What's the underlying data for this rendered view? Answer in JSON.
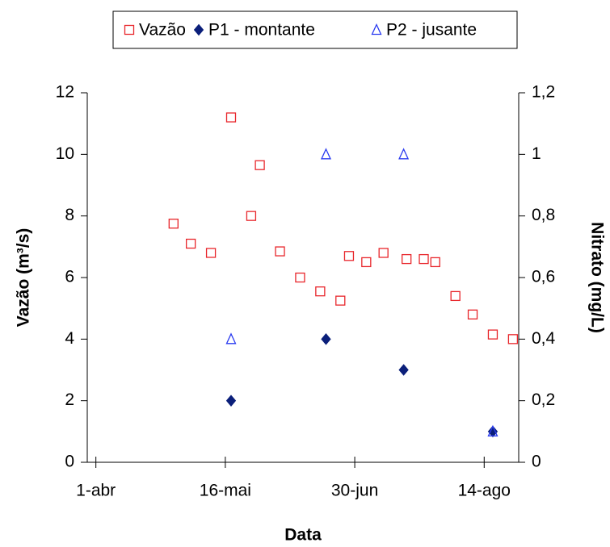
{
  "chart_data": {
    "type": "scatter",
    "x_label": "Data",
    "y_label": "Vazão (m³/s)",
    "y2_label": "Nitrato (mg/L)",
    "xlim": [
      88,
      238
    ],
    "xticks": [
      {
        "value": 91,
        "label": "1-abr"
      },
      {
        "value": 136,
        "label": "16-mai"
      },
      {
        "value": 181,
        "label": "30-jun"
      },
      {
        "value": 226,
        "label": "14-ago"
      }
    ],
    "ylim": [
      0,
      12
    ],
    "yticks": [
      0,
      2,
      4,
      6,
      8,
      10,
      12
    ],
    "y2lim": [
      0,
      1.2
    ],
    "y2ticks": [
      0,
      {
        "value": 0.2,
        "label": "0,2"
      },
      {
        "value": 0.4,
        "label": "0,4"
      },
      {
        "value": 0.6,
        "label": "0,6"
      },
      {
        "value": 0.8,
        "label": "0,8"
      },
      1,
      {
        "value": 1.2,
        "label": "1,2"
      }
    ],
    "legend": "top",
    "series": [
      {
        "name": "Vazão",
        "color": "#e8262b",
        "marker": "square",
        "axis": "y",
        "x": [
          118,
          124,
          131,
          138,
          145,
          148,
          155,
          162,
          169,
          176,
          179,
          185,
          191,
          199,
          205,
          209,
          216,
          222,
          229,
          236
        ],
        "values": [
          7.75,
          7.1,
          6.8,
          11.2,
          8.0,
          9.65,
          6.85,
          6.0,
          5.55,
          5.25,
          6.7,
          6.5,
          6.8,
          6.6,
          6.6,
          6.5,
          5.4,
          4.8,
          4.15,
          4.0
        ]
      },
      {
        "name": "P1 - montante",
        "color": "#0b1f7a",
        "marker": "diamond",
        "axis": "y2",
        "x": [
          138,
          171,
          198,
          229
        ],
        "values": [
          0.2,
          0.4,
          0.3,
          0.1
        ]
      },
      {
        "name": "P2 - jusante",
        "color": "#2a3bf0",
        "marker": "triangle",
        "axis": "y2",
        "x": [
          138,
          171,
          198,
          229
        ],
        "values": [
          0.4,
          1.0,
          1.0,
          0.1
        ]
      }
    ]
  }
}
